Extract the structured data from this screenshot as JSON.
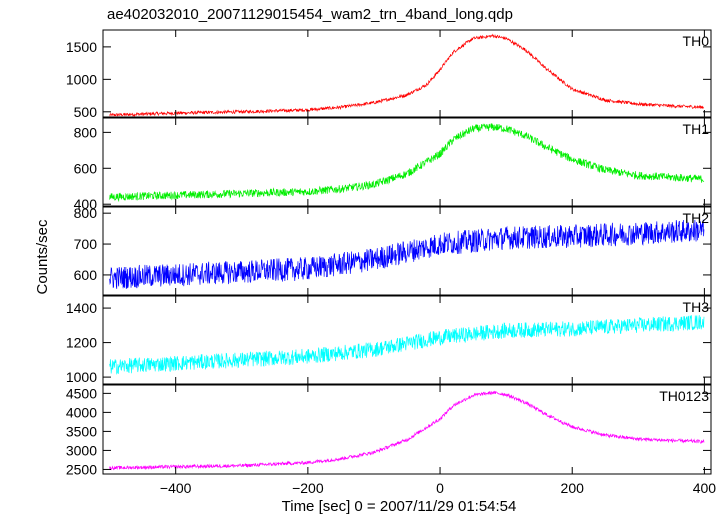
{
  "title": "ae402032010_20071129015454_wam2_trn_4band_long.qdp",
  "xlabel": "Time [sec] 0 = 2007/11/29 01:54:54",
  "ylabel": "Counts/sec",
  "chart_data": {
    "type": "line",
    "title": "ae402032010_20071129015454_wam2_trn_4band_long.qdp",
    "xlabel": "Time [sec] 0 = 2007/11/29 01:54:54",
    "ylabel": "Counts/sec",
    "xlim": [
      -510,
      410
    ],
    "xticks": [
      -400,
      -200,
      0,
      200,
      400
    ],
    "grid": false,
    "panels": [
      {
        "name": "TH0",
        "color": "#ff0000",
        "ylim": [
          420,
          1760
        ],
        "yticks": [
          500,
          1000,
          1500
        ],
        "x": [
          -500,
          -400,
          -300,
          -200,
          -150,
          -100,
          -50,
          -20,
          0,
          20,
          50,
          80,
          100,
          130,
          160,
          200,
          250,
          300,
          350,
          400
        ],
        "values": [
          450,
          480,
          500,
          530,
          570,
          640,
          760,
          920,
          1150,
          1420,
          1630,
          1670,
          1630,
          1450,
          1170,
          850,
          680,
          620,
          590,
          570
        ],
        "noise": 25
      },
      {
        "name": "TH1",
        "color": "#00ee00",
        "ylim": [
          390,
          880
        ],
        "yticks": [
          400,
          600,
          800
        ],
        "x": [
          -500,
          -400,
          -300,
          -200,
          -150,
          -100,
          -50,
          0,
          20,
          50,
          80,
          100,
          130,
          160,
          200,
          250,
          300,
          350,
          400
        ],
        "values": [
          440,
          450,
          460,
          470,
          485,
          510,
          570,
          680,
          760,
          820,
          830,
          820,
          780,
          720,
          650,
          590,
          560,
          550,
          540
        ],
        "noise": 22
      },
      {
        "name": "TH2",
        "color": "#0000ff",
        "ylim": [
          535,
          820
        ],
        "yticks": [
          600,
          700,
          800
        ],
        "x": [
          -500,
          -400,
          -300,
          -200,
          -100,
          0,
          100,
          200,
          300,
          400
        ],
        "values": [
          590,
          600,
          610,
          620,
          650,
          700,
          720,
          725,
          735,
          745
        ],
        "noise": 38
      },
      {
        "name": "TH3",
        "color": "#00ffff",
        "ylim": [
          960,
          1470
        ],
        "yticks": [
          1000,
          1200,
          1400
        ],
        "x": [
          -500,
          -400,
          -300,
          -200,
          -100,
          0,
          100,
          200,
          300,
          400
        ],
        "values": [
          1060,
          1080,
          1100,
          1120,
          1160,
          1230,
          1270,
          1280,
          1300,
          1320
        ],
        "noise": 45
      },
      {
        "name": "TH0123",
        "color": "#ff00ff",
        "ylim": [
          2380,
          4720
        ],
        "yticks": [
          2500,
          3000,
          3500,
          4000,
          4500
        ],
        "x": [
          -500,
          -400,
          -300,
          -200,
          -150,
          -100,
          -50,
          0,
          20,
          50,
          80,
          100,
          130,
          160,
          200,
          250,
          300,
          350,
          400
        ],
        "values": [
          2540,
          2570,
          2600,
          2680,
          2780,
          2950,
          3280,
          3830,
          4180,
          4450,
          4520,
          4470,
          4250,
          3950,
          3620,
          3400,
          3300,
          3260,
          3230
        ],
        "noise": 45
      }
    ]
  }
}
